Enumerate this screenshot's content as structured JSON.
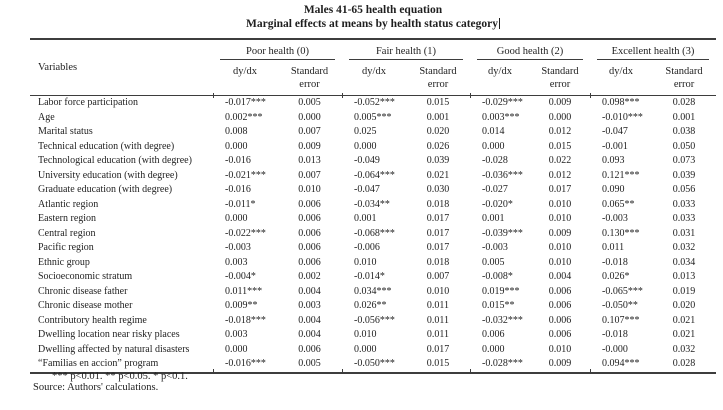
{
  "page": {
    "title_line1": "Males 41-65 health equation",
    "title_line2": "Marginal effects at means by health status category"
  },
  "table": {
    "variables_header": "Variables",
    "groups": [
      {
        "label": "Poor health (0)"
      },
      {
        "label": "Fair health (1)"
      },
      {
        "label": "Good health (2)"
      },
      {
        "label": "Excellent health (3)"
      }
    ],
    "subheader": {
      "dydx": "dy/dx",
      "se_line1": "Standard",
      "se_line2": "error"
    },
    "rows": [
      {
        "variable": "Labor force participation",
        "values": [
          "-0.017***",
          "0.005",
          "-0.052***",
          "0.015",
          "-0.029***",
          "0.009",
          "0.098***",
          "0.028"
        ]
      },
      {
        "variable": "Age",
        "values": [
          "0.002***",
          "0.000",
          "0.005***",
          "0.001",
          "0.003***",
          "0.000",
          "-0.010***",
          "0.001"
        ]
      },
      {
        "variable": "Marital status",
        "values": [
          "0.008",
          "0.007",
          "0.025",
          "0.020",
          "0.014",
          "0.012",
          "-0.047",
          "0.038"
        ]
      },
      {
        "variable": "Technical education (with degree)",
        "values": [
          "0.000",
          "0.009",
          "0.000",
          "0.026",
          "0.000",
          "0.015",
          "-0.001",
          "0.050"
        ]
      },
      {
        "variable": "Technological education (with degree)",
        "values": [
          "-0.016",
          "0.013",
          "-0.049",
          "0.039",
          "-0.028",
          "0.022",
          "0.093",
          "0.073"
        ]
      },
      {
        "variable": "University education (with degree)",
        "values": [
          "-0.021***",
          "0.007",
          "-0.064***",
          "0.021",
          "-0.036***",
          "0.012",
          "0.121***",
          "0.039"
        ]
      },
      {
        "variable": "Graduate education (with degree)",
        "values": [
          "-0.016",
          "0.010",
          "-0.047",
          "0.030",
          "-0.027",
          "0.017",
          "0.090",
          "0.056"
        ]
      },
      {
        "variable": "Atlantic region",
        "values": [
          "-0.011*",
          "0.006",
          "-0.034**",
          "0.018",
          "-0.020*",
          "0.010",
          "0.065**",
          "0.033"
        ]
      },
      {
        "variable": "Eastern region",
        "values": [
          "0.000",
          "0.006",
          "0.001",
          "0.017",
          "0.001",
          "0.010",
          "-0.003",
          "0.033"
        ]
      },
      {
        "variable": "Central region",
        "values": [
          "-0.022***",
          "0.006",
          "-0.068***",
          "0.017",
          "-0.039***",
          "0.009",
          "0.130***",
          "0.031"
        ]
      },
      {
        "variable": "Pacific region",
        "values": [
          "-0.003",
          "0.006",
          "-0.006",
          "0.017",
          "-0.003",
          "0.010",
          "0.011",
          "0.032"
        ]
      },
      {
        "variable": "Ethnic group",
        "values": [
          "0.003",
          "0.006",
          "0.010",
          "0.018",
          "0.005",
          "0.010",
          "-0.018",
          "0.034"
        ]
      },
      {
        "variable": "Socioeconomic stratum",
        "values": [
          "-0.004*",
          "0.002",
          "-0.014*",
          "0.007",
          "-0.008*",
          "0.004",
          "0.026*",
          "0.013"
        ]
      },
      {
        "variable": "Chronic disease father",
        "values": [
          "0.011***",
          "0.004",
          "0.034***",
          "0.010",
          "0.019***",
          "0.006",
          "-0.065***",
          "0.019"
        ]
      },
      {
        "variable": "Chronic disease mother",
        "values": [
          "0.009**",
          "0.003",
          "0.026**",
          "0.011",
          "0.015**",
          "0.006",
          "-0.050**",
          "0.020"
        ]
      },
      {
        "variable": "Contributory health regime",
        "values": [
          "-0.018***",
          "0.004",
          "-0.056***",
          "0.011",
          "-0.032***",
          "0.006",
          "0.107***",
          "0.021"
        ]
      },
      {
        "variable": "Dwelling location near risky places",
        "values": [
          "0.003",
          "0.004",
          "0.010",
          "0.011",
          "0.006",
          "0.006",
          "-0.018",
          "0.021"
        ]
      },
      {
        "variable": "Dwelling affected by natural disasters",
        "values": [
          "0.000",
          "0.006",
          "0.000",
          "0.017",
          "0.000",
          "0.010",
          "-0.000",
          "0.032"
        ]
      },
      {
        "variable": "“Familias en accion” program",
        "values": [
          "-0.016***",
          "0.005",
          "-0.050***",
          "0.015",
          "-0.028***",
          "0.009",
          "0.094***",
          "0.028"
        ]
      }
    ]
  },
  "footnotes": {
    "significance": "*** p<0.01. ** p<0.05. * p<0.1.",
    "source": "Source: Authors' calculations."
  }
}
